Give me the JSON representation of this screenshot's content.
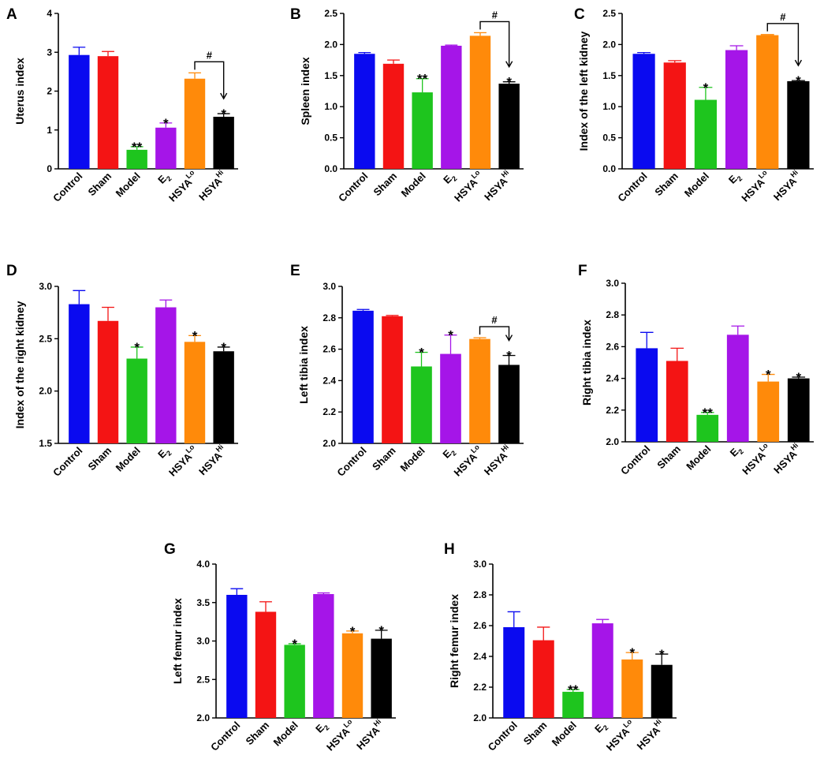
{
  "colors": {
    "Control": "#0a0af0",
    "Sham": "#f41414",
    "Model": "#1ec51e",
    "E2": "#a515e8",
    "HSYA_Lo": "#ff8a0a",
    "HSYA_Hi": "#000000"
  },
  "chart_data": [
    {
      "panel": "A",
      "type": "bar",
      "ylabel": "Uterus index",
      "categories": [
        "Control",
        "Sham",
        "Model",
        "E2",
        "HSYA Lo",
        "HSYA Hi"
      ],
      "values": [
        2.93,
        2.9,
        0.49,
        1.06,
        2.32,
        1.34
      ],
      "errors": [
        0.2,
        0.12,
        0.08,
        0.12,
        0.15,
        0.08
      ],
      "annotations": [
        "",
        "",
        "**",
        "*",
        "",
        "*"
      ],
      "ylim": [
        0,
        4
      ],
      "yticks": [
        "0",
        "1",
        "2",
        "3",
        "4"
      ],
      "bracket": {
        "from": 4,
        "to": 5,
        "label": "#"
      }
    },
    {
      "panel": "B",
      "type": "bar",
      "ylabel": "Spleen index",
      "categories": [
        "Control",
        "Sham",
        "Model",
        "E2",
        "HSYA Lo",
        "HSYA Hi"
      ],
      "values": [
        1.85,
        1.69,
        1.23,
        1.98,
        2.14,
        1.37
      ],
      "errors": [
        0.02,
        0.06,
        0.22,
        0.01,
        0.05,
        0.03
      ],
      "annotations": [
        "",
        "",
        "**",
        "",
        "",
        "*"
      ],
      "ylim": [
        0,
        2.5
      ],
      "yticks": [
        "0.0",
        "0.5",
        "1.0",
        "1.5",
        "2.0",
        "2.5"
      ],
      "bracket": {
        "from": 4,
        "to": 5,
        "label": "#"
      }
    },
    {
      "panel": "C",
      "type": "bar",
      "ylabel": "Index of the left kidney",
      "categories": [
        "Control",
        "Sham",
        "Model",
        "E2",
        "HSYA Lo",
        "HSYA Hi"
      ],
      "values": [
        1.85,
        1.71,
        1.11,
        1.91,
        2.15,
        1.41
      ],
      "errors": [
        0.02,
        0.03,
        0.2,
        0.07,
        0.01,
        0.01
      ],
      "annotations": [
        "",
        "",
        "*",
        "",
        "",
        "*"
      ],
      "ylim": [
        0,
        2.5
      ],
      "yticks": [
        "0.0",
        "0.5",
        "1.0",
        "1.5",
        "2.0",
        "2.5"
      ],
      "bracket": {
        "from": 4,
        "to": 5,
        "label": "#"
      }
    },
    {
      "panel": "D",
      "type": "bar",
      "ylabel": "Index of the right kidney",
      "categories": [
        "Control",
        "Sham",
        "Model",
        "E2",
        "HSYA Lo",
        "HSYA Hi"
      ],
      "values": [
        2.83,
        2.67,
        2.31,
        2.8,
        2.47,
        2.38
      ],
      "errors": [
        0.13,
        0.13,
        0.11,
        0.07,
        0.06,
        0.04
      ],
      "annotations": [
        "",
        "",
        "*",
        "",
        "*",
        "*"
      ],
      "ylim": [
        1.5,
        3.0
      ],
      "yticks": [
        "1.5",
        "2.0",
        "2.5",
        "3.0"
      ],
      "bracket": null
    },
    {
      "panel": "E",
      "type": "bar",
      "ylabel": "Left tibia index",
      "categories": [
        "Control",
        "Sham",
        "Model",
        "E2",
        "HSYA Lo",
        "HSYA Hi"
      ],
      "values": [
        2.845,
        2.81,
        2.49,
        2.57,
        2.665,
        2.5
      ],
      "errors": [
        0.008,
        0.005,
        0.09,
        0.12,
        0.008,
        0.06
      ],
      "annotations": [
        "",
        "",
        "*",
        "*",
        "",
        "*"
      ],
      "ylim": [
        2.0,
        3.0
      ],
      "yticks": [
        "2.0",
        "2.2",
        "2.4",
        "2.6",
        "2.8",
        "3.0"
      ],
      "bracket": {
        "from": 4,
        "to": 5,
        "label": "#"
      }
    },
    {
      "panel": "F",
      "type": "bar",
      "ylabel": "Right tibia index",
      "categories": [
        "Control",
        "Sham",
        "Model",
        "E2",
        "HSYA Lo",
        "HSYA Hi"
      ],
      "values": [
        2.59,
        2.51,
        2.17,
        2.675,
        2.38,
        2.4
      ],
      "errors": [
        0.1,
        0.08,
        0.015,
        0.055,
        0.045,
        0.008
      ],
      "annotations": [
        "",
        "",
        "**",
        "",
        "*",
        "*"
      ],
      "ylim": [
        2.0,
        3.0
      ],
      "yticks": [
        "2.0",
        "2.2",
        "2.4",
        "2.6",
        "2.8",
        "3.0"
      ],
      "bracket": null
    },
    {
      "panel": "G",
      "type": "bar",
      "ylabel": "Left femur index",
      "categories": [
        "Control",
        "Sham",
        "Model",
        "E2",
        "HSYA Lo",
        "HSYA Hi"
      ],
      "values": [
        3.6,
        3.38,
        2.95,
        3.61,
        3.1,
        3.03
      ],
      "errors": [
        0.08,
        0.13,
        0.015,
        0.015,
        0.03,
        0.11
      ],
      "annotations": [
        "",
        "",
        "*",
        "",
        "*",
        "*"
      ],
      "ylim": [
        2.0,
        4.0
      ],
      "yticks": [
        "2.0",
        "2.5",
        "3.0",
        "3.5",
        "4.0"
      ],
      "bracket": null
    },
    {
      "panel": "H",
      "type": "bar",
      "ylabel": "Right femur index",
      "categories": [
        "Control",
        "Sham",
        "Model",
        "E2",
        "HSYA Lo",
        "HSYA Hi"
      ],
      "values": [
        2.59,
        2.505,
        2.17,
        2.615,
        2.38,
        2.345
      ],
      "errors": [
        0.1,
        0.085,
        0.015,
        0.025,
        0.045,
        0.07
      ],
      "annotations": [
        "",
        "",
        "**",
        "",
        "*",
        "*"
      ],
      "ylim": [
        2.0,
        3.0
      ],
      "yticks": [
        "2.0",
        "2.2",
        "2.4",
        "2.6",
        "2.8",
        "3.0"
      ],
      "bracket": null
    }
  ],
  "category_labels": [
    {
      "base": "Control",
      "sub": "",
      "sup": ""
    },
    {
      "base": "Sham",
      "sub": "",
      "sup": ""
    },
    {
      "base": "Model",
      "sub": "",
      "sup": ""
    },
    {
      "base": "E",
      "sub": "2",
      "sup": ""
    },
    {
      "base": "HSYA",
      "sub": "",
      "sup": "Lo"
    },
    {
      "base": "HSYA",
      "sub": "",
      "sup": "Hi"
    }
  ]
}
